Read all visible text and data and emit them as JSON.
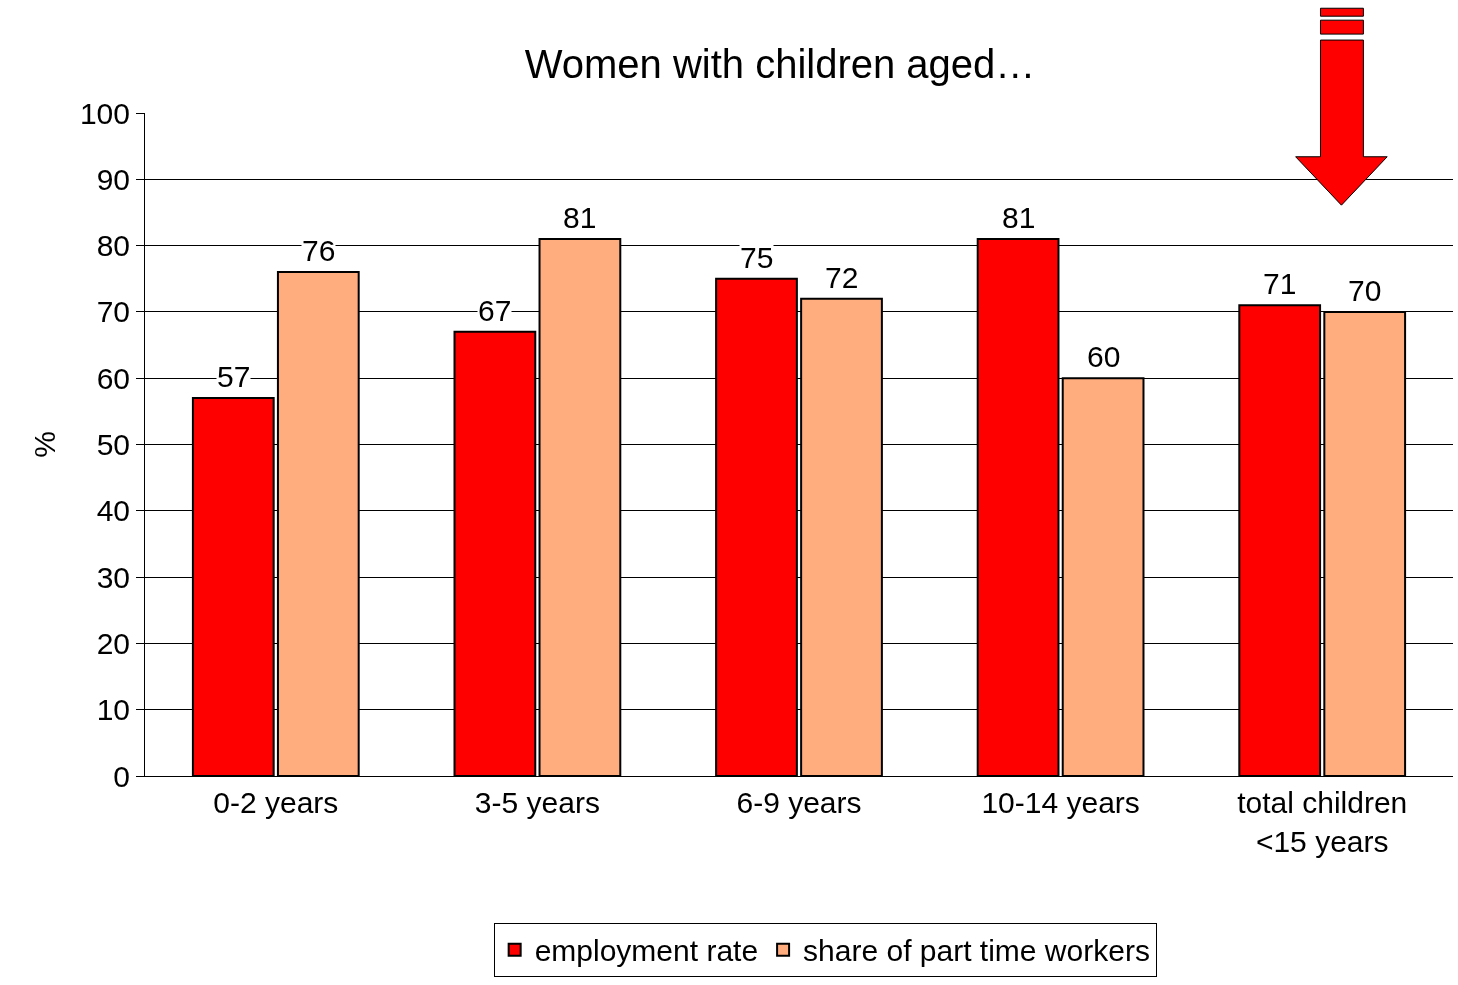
{
  "chart_data": {
    "type": "bar",
    "title": "Women with children aged…",
    "ylabel": "%",
    "categories": [
      "0-2 years",
      "3-5 years",
      "6-9 years",
      "10-14 years",
      "total children\n<15 years"
    ],
    "series": [
      {
        "name": "employment rate",
        "color": "#ff0000",
        "values": [
          57,
          67,
          75,
          81,
          71
        ]
      },
      {
        "name": "share of part time workers",
        "color": "#ffad7f",
        "values": [
          76,
          81,
          72,
          60,
          70
        ]
      }
    ],
    "ylim": [
      0,
      100
    ],
    "yticks": [
      0,
      10,
      20,
      30,
      40,
      50,
      60,
      70,
      80,
      90,
      100
    ],
    "grid": "y",
    "legend": "bottom",
    "data_labels": true
  }
}
